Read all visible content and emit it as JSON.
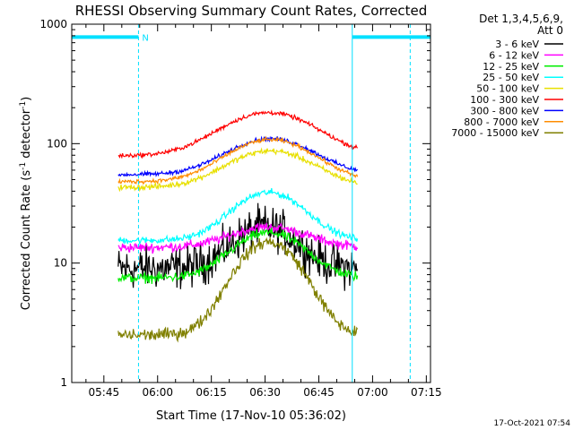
{
  "chart_data": {
    "type": "line",
    "title": "RHESSI Observing Summary Count Rates, Corrected",
    "xlabel": "Start Time (17-Nov-10 05:36:02)",
    "ylabel": "Corrected Count Rate (s",
    "ylabel_sup1": "-1",
    "ylabel_mid": " detector",
    "ylabel_sup2": "-1",
    "ylabel_end": ")",
    "yscale": "log",
    "ylim": [
      1,
      1000
    ],
    "xlim": [
      "05:36:02",
      "07:16:10"
    ],
    "x_ticks": [
      "05:45",
      "06:00",
      "06:15",
      "06:30",
      "06:45",
      "07:00",
      "07:15"
    ],
    "y_ticks": [
      "1",
      "10",
      "100",
      "1000"
    ],
    "legend_header": [
      "Det 1,3,4,5,6,9,",
      "Att 0"
    ],
    "legend_position": "right",
    "footer": "17-Oct-2021 07:54",
    "annotations": [
      {
        "type": "night-bar",
        "from": "05:36:02",
        "to": "05:54:40",
        "y": 780,
        "label": "N"
      },
      {
        "type": "night-bar",
        "from": "06:54:20",
        "to": "07:16:10",
        "y": 780,
        "label": ""
      }
    ],
    "vlines_solid": [
      "05:36:02",
      "06:54:20"
    ],
    "vlines_dashed": [
      "05:54:40",
      "07:10:30"
    ],
    "series": [
      {
        "name": "3 - 6 keV",
        "color": "#000000",
        "start": "05:49:00",
        "end": "06:55:50",
        "baseline": 9,
        "peak": 20,
        "peak_time": "06:30:00",
        "sigma": 8,
        "noise": 0.3
      },
      {
        "name": "6 - 12 keV",
        "color": "#ff00ff",
        "start": "05:49:00",
        "end": "06:55:50",
        "baseline": 13.5,
        "peak": 20,
        "peak_time": "06:31:00",
        "sigma": 10,
        "noise": 0.07
      },
      {
        "name": "12 - 25 keV",
        "color": "#00ee00",
        "start": "05:49:00",
        "end": "06:55:50",
        "baseline": 7.5,
        "peak": 18,
        "peak_time": "06:31:00",
        "sigma": 9,
        "noise": 0.07
      },
      {
        "name": "25 - 50 keV",
        "color": "#00ffff",
        "start": "05:49:00",
        "end": "06:55:50",
        "baseline": 15.5,
        "peak": 39,
        "peak_time": "06:31:00",
        "sigma": 9,
        "noise": 0.05
      },
      {
        "name": "50 - 100 keV",
        "color": "#e8e000",
        "start": "05:49:00",
        "end": "06:55:50",
        "baseline": 43,
        "peak": 87,
        "peak_time": "06:31:30",
        "sigma": 11,
        "noise": 0.04
      },
      {
        "name": "100 - 300 keV",
        "color": "#ff0000",
        "start": "05:49:00",
        "end": "06:55:50",
        "baseline": 79,
        "peak": 182,
        "peak_time": "06:31:00",
        "sigma": 12,
        "noise": 0.03
      },
      {
        "name": "300 - 800 keV",
        "color": "#0000ff",
        "start": "05:49:00",
        "end": "06:55:50",
        "baseline": 55,
        "peak": 110,
        "peak_time": "06:31:30",
        "sigma": 11,
        "noise": 0.03
      },
      {
        "name": "800 - 7000 keV",
        "color": "#ff8c00",
        "start": "05:49:00",
        "end": "06:55:50",
        "baseline": 48,
        "peak": 108,
        "peak_time": "06:31:30",
        "sigma": 11,
        "noise": 0.03
      },
      {
        "name": "7000 - 15000 keV",
        "color": "#808000",
        "start": "05:49:00",
        "end": "06:55:50",
        "baseline": 2.5,
        "peak": 15,
        "peak_time": "06:31:00",
        "sigma": 8,
        "noise": 0.09
      }
    ]
  }
}
